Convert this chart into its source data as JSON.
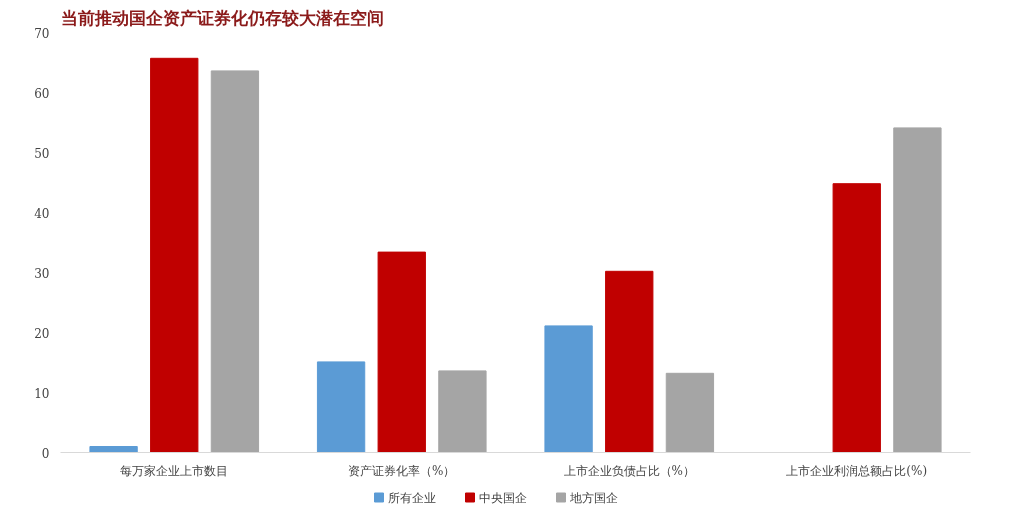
{
  "chart_data": {
    "type": "bar",
    "title": "当前推动国企资产证券化仍存较大潜在空间",
    "categories": [
      "每万家企业上市数目",
      "资产证券化率（%）",
      "上市企业负债占比（%）",
      "上市企业利润总额占比(%)"
    ],
    "series": [
      {
        "name": "所有企业",
        "color": "#5b9bd5",
        "values": [
          1,
          15.1,
          21.1,
          null
        ]
      },
      {
        "name": "中央国企",
        "color": "#c00000",
        "values": [
          65.7,
          33.4,
          30.2,
          44.8
        ]
      },
      {
        "name": "地方国企",
        "color": "#a5a5a5",
        "values": [
          63.6,
          13.6,
          13.2,
          54.1
        ]
      }
    ],
    "ylim": [
      0,
      70
    ],
    "yticks": [
      0,
      10,
      20,
      30,
      40,
      50,
      60,
      70
    ],
    "grid": false,
    "legend": "bottom"
  }
}
